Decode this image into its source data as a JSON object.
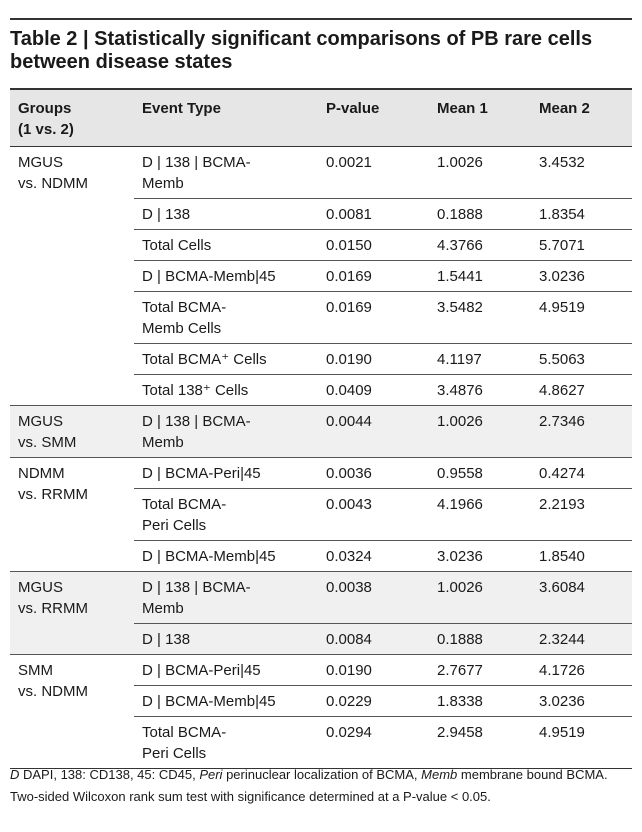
{
  "title": "Table 2 | Statistically significant comparisons of PB rare cells between disease states",
  "table": {
    "columns": [
      "Groups\n(1 vs. 2)",
      "Event Type",
      "P-value",
      "Mean 1",
      "Mean 2"
    ],
    "groups": [
      {
        "label": "MGUS\nvs. NDMM",
        "rows": [
          [
            "D | 138 | BCMA-\nMemb",
            "0.0021",
            "1.0026",
            "3.4532"
          ],
          [
            "D | 138",
            "0.0081",
            "0.1888",
            "1.8354"
          ],
          [
            "Total Cells",
            "0.0150",
            "4.3766",
            "5.7071"
          ],
          [
            "D | BCMA-Memb|45",
            "0.0169",
            "1.5441",
            "3.0236"
          ],
          [
            "Total BCMA-\nMemb Cells",
            "0.0169",
            "3.5482",
            "4.9519"
          ],
          [
            "Total BCMA⁺ Cells",
            "0.0190",
            "4.1197",
            "5.5063"
          ],
          [
            "Total 138⁺ Cells",
            "0.0409",
            "3.4876",
            "4.8627"
          ]
        ]
      },
      {
        "label": "MGUS\nvs. SMM",
        "rows": [
          [
            "D | 138 | BCMA-\nMemb",
            "0.0044",
            "1.0026",
            "2.7346"
          ]
        ]
      },
      {
        "label": "NDMM\nvs. RRMM",
        "rows": [
          [
            "D | BCMA-Peri|45",
            "0.0036",
            "0.9558",
            "0.4274"
          ],
          [
            "Total BCMA-\nPeri Cells",
            "0.0043",
            "4.1966",
            "2.2193"
          ],
          [
            "D | BCMA-Memb|45",
            "0.0324",
            "3.0236",
            "1.8540"
          ]
        ]
      },
      {
        "label": "MGUS\nvs. RRMM",
        "rows": [
          [
            "D | 138 | BCMA-\nMemb",
            "0.0038",
            "1.0026",
            "3.6084"
          ],
          [
            "D | 138",
            "0.0084",
            "0.1888",
            "2.3244"
          ]
        ]
      },
      {
        "label": "SMM\nvs. NDMM",
        "rows": [
          [
            "D | BCMA-Peri|45",
            "0.0190",
            "2.7677",
            "4.1726"
          ],
          [
            "D | BCMA-Memb|45",
            "0.0229",
            "1.8338",
            "3.0236"
          ],
          [
            "Total BCMA-\nPeri Cells",
            "0.0294",
            "2.9458",
            "4.9519"
          ]
        ]
      }
    ]
  },
  "footnote": [
    "D",
    " DAPI, 138: CD138, 45: CD45, ",
    "Peri",
    " perinuclear localization of BCMA, ",
    "Memb",
    " membrane bound BCMA. Two-sided Wilcoxon rank sum test with significance determined at a P-value < 0.05."
  ]
}
